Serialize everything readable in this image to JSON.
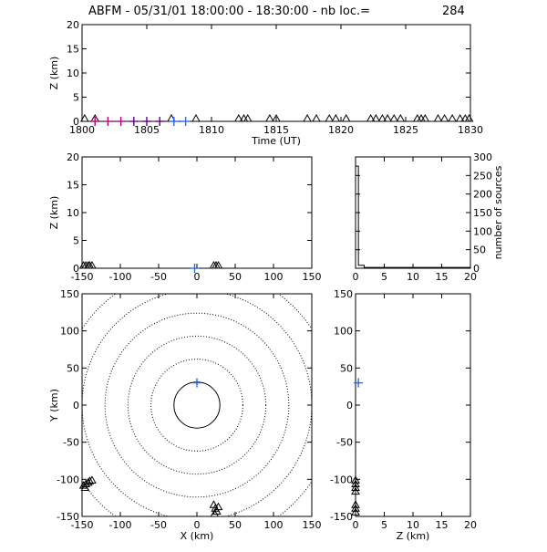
{
  "header": {
    "title": "ABFM - 05/31/01 18:00:00 - 18:30:00 - nb loc.=",
    "count": "284"
  },
  "colors": {
    "magenta": "#b4007c",
    "purple": "#5a0090",
    "blue": "#1f6bff",
    "ink": "#000000"
  },
  "chart_data": [
    {
      "id": "time-height",
      "type": "scatter",
      "xlabel": "Time (UT)",
      "ylabel": "Z (km)",
      "xlim": [
        1800,
        1830
      ],
      "ylim": [
        0,
        20
      ],
      "xticks": [
        "1800",
        "1805",
        "1810",
        "1815",
        "1820",
        "1825",
        "1830"
      ],
      "yticks": [
        "0",
        "5",
        "10",
        "15",
        "20"
      ],
      "crosses": [
        {
          "x": 1801.0,
          "y": 0,
          "color": "magenta"
        },
        {
          "x": 1802.0,
          "y": 0,
          "color": "magenta"
        },
        {
          "x": 1803.0,
          "y": 0,
          "color": "magenta"
        },
        {
          "x": 1804.0,
          "y": 0,
          "color": "purple"
        },
        {
          "x": 1805.0,
          "y": 0,
          "color": "purple"
        },
        {
          "x": 1806.0,
          "y": 0,
          "color": "purple"
        },
        {
          "x": 1807.1,
          "y": 0,
          "color": "blue"
        },
        {
          "x": 1808.0,
          "y": 0,
          "color": "blue"
        }
      ],
      "triangles_x": [
        1800.2,
        1801.0,
        1806.9,
        1808.8,
        1812.1,
        1812.5,
        1812.8,
        1814.5,
        1815.0,
        1817.4,
        1818.1,
        1819.1,
        1819.6,
        1820.4,
        1822.3,
        1822.7,
        1823.2,
        1823.6,
        1824.1,
        1824.6,
        1825.9,
        1826.2,
        1826.5,
        1827.5,
        1828.0,
        1828.6,
        1829.2,
        1829.6,
        1829.9
      ],
      "triangles_y": 0
    },
    {
      "id": "x-height",
      "type": "scatter",
      "ylabel": "Z (km)",
      "xlim": [
        -150,
        150
      ],
      "ylim": [
        0,
        20
      ],
      "xticks": [
        "-150",
        "-100",
        "-50",
        "0",
        "50",
        "100",
        "150"
      ],
      "yticks": [
        "0",
        "5",
        "10",
        "15",
        "20"
      ],
      "crosses": [
        {
          "x": -3,
          "y": 0,
          "color": "blue"
        }
      ],
      "triangles_x": [
        -148,
        -145,
        -142,
        -140,
        -137,
        22,
        25,
        28
      ],
      "triangles_y": 0
    },
    {
      "id": "height-histogram",
      "type": "bar",
      "ylabel": "number of sources",
      "xlim": [
        0,
        20
      ],
      "ylim": [
        0,
        300
      ],
      "xticks": [
        "0",
        "5",
        "10",
        "15",
        "20"
      ],
      "yticks": [
        "0",
        "50",
        "100",
        "150",
        "200",
        "250",
        "300"
      ],
      "bins": [
        [
          0,
          0.5,
          275
        ],
        [
          0.5,
          1.5,
          8
        ],
        [
          1.5,
          20,
          2
        ]
      ]
    },
    {
      "id": "plan-view",
      "type": "scatter",
      "xlabel": "X (km)",
      "ylabel": "Y (km)",
      "xlim": [
        -150,
        150
      ],
      "ylim": [
        -150,
        150
      ],
      "xticks": [
        "-150",
        "-100",
        "-50",
        "0",
        "50",
        "100",
        "150"
      ],
      "yticks": [
        "-150",
        "-100",
        "-50",
        "0",
        "50",
        "100",
        "150"
      ],
      "range_rings_km": [
        30,
        60,
        90,
        120,
        150,
        180,
        210
      ],
      "crosses": [
        {
          "x": 0,
          "y": 30,
          "color": "blue"
        }
      ],
      "triangles": [
        [
          -148,
          -112
        ],
        [
          -145,
          -110
        ],
        [
          -142,
          -108
        ],
        [
          -140,
          -106
        ],
        [
          -137,
          -105
        ],
        [
          -146,
          -115
        ],
        [
          22,
          -138
        ],
        [
          24,
          -143
        ],
        [
          26,
          -147
        ],
        [
          28,
          -141
        ],
        [
          23,
          -150
        ]
      ]
    },
    {
      "id": "height-y",
      "type": "scatter",
      "xlabel": "Z (km)",
      "xlim": [
        0,
        20
      ],
      "ylim": [
        -150,
        150
      ],
      "xticks": [
        "0",
        "5",
        "10",
        "15",
        "20"
      ],
      "yticks": [
        "-150",
        "-100",
        "-50",
        "0",
        "50",
        "100",
        "150"
      ],
      "crosses": [
        {
          "x": 0.5,
          "y": 30,
          "color": "blue"
        }
      ],
      "triangles": [
        [
          0,
          -105
        ],
        [
          0,
          -110
        ],
        [
          0,
          -115
        ],
        [
          0,
          -120
        ],
        [
          0,
          -138
        ],
        [
          0,
          -143
        ],
        [
          0,
          -148
        ]
      ]
    }
  ]
}
